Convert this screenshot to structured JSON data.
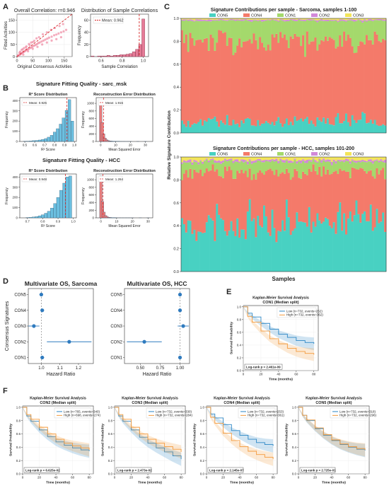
{
  "panels": {
    "A": {
      "letter": "A",
      "scatter": {
        "title": "Overall Correlation: r=0.946",
        "xlabel": "Original Consensus Activities",
        "ylabel": "Fitted Activities",
        "xticks": [
          "0",
          "50",
          "100",
          "150"
        ],
        "yticks": [
          "0",
          "50",
          "100",
          "150"
        ],
        "xlim": [
          0,
          175
        ],
        "ylim": [
          0,
          175
        ],
        "color": "#f08aa2"
      },
      "hist": {
        "title": "Distribution of Sample Correlations",
        "xlabel": "Sample Correlation",
        "ylabel": "Frequency",
        "legend": "Mean: 0.962",
        "xticks": [
          "0.6",
          "0.8",
          "1.0"
        ],
        "yticks": [
          "0",
          "20",
          "40",
          "60"
        ],
        "xlim": [
          0.5,
          1.05
        ],
        "ylim": [
          0,
          70
        ],
        "color": "#e67c98"
      }
    },
    "B": {
      "letter": "B",
      "sarc": {
        "suptitle": "Signature Fitting Quality - sarc_msk",
        "r2": {
          "title": "R² Score Distribution",
          "xlabel": "R² Score",
          "ylabel": "Frequency",
          "legend": "Mean: 0.925",
          "xticks": [
            "0.5",
            "0.6",
            "0.7",
            "0.8",
            "0.9",
            "1.0"
          ],
          "yticks": [
            "0",
            "100",
            "200",
            "300",
            "400"
          ],
          "xlim": [
            0.45,
            1.02
          ],
          "ylim": [
            0,
            430
          ]
        },
        "err": {
          "title": "Reconstruction Error Distribution",
          "xlabel": "Mean Squared Error",
          "ylabel": "Frequency",
          "legend": "Mean: 1.915",
          "xticks": [
            "0",
            "10",
            "20",
            "30"
          ],
          "yticks": [
            "0",
            "200",
            "400",
            "600",
            "800",
            "1000"
          ],
          "xlim": [
            -3,
            35
          ],
          "ylim": [
            0,
            1150
          ]
        }
      },
      "hcc": {
        "suptitle": "Signature Fitting Quality - HCC",
        "r2": {
          "title": "R² Score Distribution",
          "xlabel": "R² Score",
          "ylabel": "Frequency",
          "legend": "Mean: 0.948",
          "xticks": [
            "0.7",
            "0.8",
            "0.9",
            "1.0"
          ],
          "yticks": [
            "0",
            "100",
            "200",
            "300",
            "400"
          ],
          "xlim": [
            0.65,
            1.02
          ],
          "ylim": [
            0,
            430
          ]
        },
        "err": {
          "title": "Reconstruction Error Distribution",
          "xlabel": "Mean Squared Error",
          "ylabel": "Frequency",
          "legend": "Mean: 1.264",
          "xticks": [
            "0",
            "10",
            "20",
            "30"
          ],
          "yticks": [
            "0",
            "200",
            "400",
            "600",
            "800",
            "1000"
          ],
          "xlim": [
            -3,
            33
          ],
          "ylim": [
            0,
            1150
          ]
        }
      },
      "r2color": "#6bbfe0",
      "errcolor": "#e87c7c"
    },
    "C": {
      "letter": "C",
      "ylabel": "Relative Signature Contribution",
      "xlabel": "Samples",
      "yticks": [
        "0.0",
        "0.2",
        "0.4",
        "0.6",
        "0.8",
        "1.0"
      ],
      "legend": [
        "CON5",
        "CON4",
        "CON1",
        "CON2",
        "CON3"
      ],
      "colors": {
        "CON5": "#48d1c2",
        "CON4": "#f47a6a",
        "CON1": "#a4d96c",
        "CON2": "#d289d9",
        "CON3": "#f3e55a"
      },
      "top_title": "Signature Contributions per sample - Sarcoma, samples 1-100",
      "bottom_title": "Signature Contributions per sample - HCC, samples 101-200"
    },
    "D": {
      "letter": "D",
      "ylabel": "Consensus Signatures",
      "xlabel": "Hazard Ratio",
      "signatures": [
        "CON5",
        "CON4",
        "CON3",
        "CON2",
        "CON1"
      ],
      "color": "#2f7bbf",
      "sarcoma": {
        "title": "Multivariate OS, Sarcoma",
        "xticks": [
          "1.0",
          "1.1",
          "1.2"
        ],
        "xlim": [
          0.93,
          1.28
        ]
      },
      "hcc": {
        "title": "Multivariate OS, HCC",
        "xticks": [
          "0.50",
          "0.75",
          "1.00"
        ],
        "xlim": [
          0.3,
          1.12
        ]
      }
    },
    "E": {
      "letter": "E",
      "title": "Kaplan-Meier Survival Analysis",
      "subtitle": "CON1 (Median split)",
      "legend_low": "Low (n=732, events=252)",
      "legend_high": "High (n=732, events=362)",
      "pval": "Log-rank p = 2.461e-09",
      "xlabel": "Time (months)",
      "ylabel": "Survival Probability"
    },
    "F": {
      "letter": "F",
      "xlabel": "Time (months)",
      "ylabel": "Survival Probability",
      "plots": [
        {
          "title": "Kaplan-Meier Survival Analysis",
          "subtitle": "CON2 (Median split)",
          "legend_low": "Low (n=765, events=340)",
          "legend_high": "High (n=698, events=274)",
          "pval": "Log-rank p = 6.625e-02"
        },
        {
          "title": "Kaplan-Meier Survival Analysis",
          "subtitle": "CON3 (Median split)",
          "legend_low": "Low (n=732, events=330)",
          "legend_high": "High (n=732, events=284)",
          "pval": "Log-rank p = 2.473e-02"
        },
        {
          "title": "Kaplan-Meier Survival Analysis",
          "subtitle": "CON4 (Median split)",
          "legend_low": "Low (n=732, events=253)",
          "legend_high": "High (n=732, events=361)",
          "pval": "Log-rank p = 2.145e-07"
        },
        {
          "title": "Kaplan-Meier Survival Analysis",
          "subtitle": "CON5 (Median split)",
          "legend_low": "Low (n=732, events=318)",
          "legend_high": "High (n=732, events=296)",
          "pval": "Log-rank p = 2.725e-01"
        }
      ]
    },
    "km": {
      "xticks": [
        "0",
        "20",
        "40",
        "60",
        "80"
      ],
      "yticks": [
        "0.0",
        "0.2",
        "0.4",
        "0.6",
        "0.8",
        "1.0"
      ],
      "low_color": "#2b86c5",
      "high_color": "#f39a3c"
    }
  },
  "chart_data": [
    {
      "type": "scatter",
      "title": "Overall Correlation: r=0.946",
      "xlabel": "Original Consensus Activities",
      "ylabel": "Fitted Activities",
      "xlim": [
        0,
        175
      ],
      "ylim": [
        0,
        175
      ],
      "points": [
        [
          2,
          2
        ],
        [
          4,
          5
        ],
        [
          6,
          6
        ],
        [
          8,
          7
        ],
        [
          10,
          9
        ],
        [
          12,
          11
        ],
        [
          14,
          13
        ],
        [
          15,
          15
        ],
        [
          18,
          16
        ],
        [
          20,
          19
        ],
        [
          22,
          20
        ],
        [
          25,
          22
        ],
        [
          27,
          25
        ],
        [
          30,
          27
        ],
        [
          33,
          29
        ],
        [
          36,
          31
        ],
        [
          40,
          34
        ],
        [
          44,
          37
        ],
        [
          48,
          40
        ],
        [
          52,
          44
        ],
        [
          56,
          46
        ],
        [
          60,
          49
        ],
        [
          64,
          52
        ],
        [
          68,
          56
        ],
        [
          72,
          58
        ],
        [
          78,
          62
        ],
        [
          84,
          66
        ],
        [
          90,
          70
        ],
        [
          96,
          74
        ],
        [
          102,
          78
        ],
        [
          110,
          82
        ],
        [
          118,
          88
        ],
        [
          125,
          91
        ],
        [
          132,
          95
        ],
        [
          140,
          100
        ],
        [
          148,
          104
        ],
        [
          156,
          110
        ],
        [
          10,
          20
        ],
        [
          15,
          28
        ],
        [
          22,
          35
        ],
        [
          30,
          42
        ],
        [
          38,
          52
        ],
        [
          45,
          58
        ],
        [
          55,
          65
        ],
        [
          62,
          75
        ],
        [
          70,
          80
        ],
        [
          82,
          92
        ],
        [
          95,
          100
        ],
        [
          108,
          110
        ],
        [
          120,
          118
        ],
        [
          135,
          126
        ],
        [
          146,
          134
        ],
        [
          8,
          16
        ],
        [
          18,
          30
        ],
        [
          28,
          38
        ],
        [
          40,
          48
        ],
        [
          50,
          60
        ],
        [
          20,
          8
        ],
        [
          35,
          22
        ],
        [
          50,
          32
        ],
        [
          65,
          40
        ],
        [
          80,
          50
        ],
        [
          95,
          58
        ],
        [
          110,
          66
        ],
        [
          125,
          72
        ],
        [
          140,
          80
        ]
      ]
    },
    {
      "type": "bar",
      "title": "Distribution of Sample Correlations",
      "xlabel": "Sample Correlation",
      "ylabel": "Frequency",
      "x": [
        0.52,
        0.55,
        0.58,
        0.61,
        0.64,
        0.67,
        0.7,
        0.73,
        0.76,
        0.79,
        0.82,
        0.85,
        0.88,
        0.91,
        0.94,
        0.97,
        1.0
      ],
      "values": [
        1,
        0,
        1,
        1,
        1,
        2,
        1,
        2,
        2,
        3,
        3,
        4,
        5,
        8,
        12,
        20,
        62
      ],
      "mean": 0.962
    },
    {
      "type": "bar",
      "title": "R² Score Distribution (sarc_msk)",
      "xlabel": "R² Score",
      "ylabel": "Frequency",
      "x": [
        0.5,
        0.53,
        0.56,
        0.59,
        0.62,
        0.65,
        0.68,
        0.71,
        0.74,
        0.77,
        0.8,
        0.83,
        0.86,
        0.89,
        0.92,
        0.95,
        0.98
      ],
      "values": [
        2,
        3,
        5,
        8,
        10,
        14,
        20,
        28,
        42,
        60,
        92,
        125,
        170,
        230,
        305,
        410,
        200
      ],
      "mean": 0.925
    },
    {
      "type": "bar",
      "title": "Reconstruction Error Distribution (sarc_msk)",
      "xlabel": "Mean Squared Error",
      "ylabel": "Frequency",
      "x": [
        0,
        1,
        2,
        3,
        4,
        5,
        6,
        7,
        8,
        9,
        10,
        12,
        14,
        16,
        18,
        20,
        25,
        30
      ],
      "values": [
        1080,
        500,
        200,
        90,
        45,
        25,
        15,
        10,
        7,
        5,
        4,
        3,
        2,
        2,
        1,
        1,
        1,
        1
      ],
      "mean": 1.915
    },
    {
      "type": "bar",
      "title": "R² Score Distribution (HCC)",
      "xlabel": "R² Score",
      "ylabel": "Frequency",
      "x": [
        0.7,
        0.72,
        0.74,
        0.76,
        0.78,
        0.8,
        0.82,
        0.84,
        0.86,
        0.88,
        0.9,
        0.92,
        0.94,
        0.96,
        0.98
      ],
      "values": [
        3,
        5,
        8,
        12,
        20,
        30,
        45,
        65,
        95,
        140,
        200,
        270,
        340,
        400,
        410
      ],
      "mean": 0.948
    },
    {
      "type": "bar",
      "title": "Reconstruction Error Distribution (HCC)",
      "xlabel": "Mean Squared Error",
      "ylabel": "Frequency",
      "x": [
        0,
        1,
        2,
        3,
        4,
        5,
        6,
        7,
        8,
        9,
        10,
        12,
        14,
        16,
        18,
        20,
        25,
        30
      ],
      "values": [
        1100,
        430,
        150,
        60,
        30,
        15,
        10,
        6,
        4,
        3,
        2,
        2,
        1,
        1,
        1,
        1,
        1,
        1
      ],
      "mean": 1.264
    },
    {
      "type": "bar",
      "stacked": true,
      "title": "Signature Contributions per sample - Sarcoma, samples 1-100",
      "ylabel": "Relative Signature Contribution",
      "n_samples": 100,
      "series_order": [
        "CON5",
        "CON4",
        "CON1",
        "CON2",
        "CON3"
      ],
      "mean_fractions": {
        "CON5": 0.1,
        "CON4": 0.71,
        "CON1": 0.17,
        "CON2": 0.01,
        "CON3": 0.01
      }
    },
    {
      "type": "bar",
      "stacked": true,
      "title": "Signature Contributions per sample - HCC, samples 101-200",
      "ylabel": "Relative Signature Contribution",
      "xlabel": "Samples",
      "n_samples": 100,
      "series_order": [
        "CON5",
        "CON4",
        "CON1",
        "CON2",
        "CON3"
      ],
      "mean_fractions": {
        "CON5": 0.42,
        "CON4": 0.45,
        "CON1": 0.09,
        "CON2": 0.015,
        "CON3": 0.025
      }
    },
    {
      "type": "scatter",
      "title": "Multivariate OS, Sarcoma",
      "xlabel": "Hazard Ratio",
      "ylabel": "Consensus Signatures",
      "categories": [
        "CON5",
        "CON4",
        "CON3",
        "CON2",
        "CON1"
      ],
      "hr": [
        1.0,
        1.005,
        0.96,
        1.15,
        1.005
      ],
      "ci_low": [
        0.99,
        0.995,
        0.93,
        1.03,
        0.995
      ],
      "ci_high": [
        1.01,
        1.015,
        0.99,
        1.27,
        1.015
      ],
      "reference": 1.0
    },
    {
      "type": "scatter",
      "title": "Multivariate OS, HCC",
      "xlabel": "Hazard Ratio",
      "ylabel": "Consensus Signatures",
      "categories": [
        "CON5",
        "CON4",
        "CON3",
        "CON2",
        "CON1"
      ],
      "hr": [
        1.0,
        1.0,
        1.04,
        0.55,
        1.0
      ],
      "ci_low": [
        0.98,
        0.98,
        0.97,
        0.33,
        0.98
      ],
      "ci_high": [
        1.02,
        1.02,
        1.11,
        0.77,
        1.02
      ],
      "reference": 1.0
    },
    {
      "type": "line",
      "title": "Kaplan-Meier Survival Analysis CON1 (Median split)",
      "xlabel": "Time (months)",
      "ylabel": "Survival Probability",
      "x": [
        0,
        5,
        10,
        20,
        30,
        40,
        50,
        60,
        70,
        80
      ],
      "series": [
        {
          "name": "Low (n=732, events=252)",
          "values": [
            1.0,
            0.9,
            0.84,
            0.74,
            0.65,
            0.57,
            0.52,
            0.47,
            0.44,
            0.42
          ]
        },
        {
          "name": "High (n=732, events=362)",
          "values": [
            1.0,
            0.85,
            0.76,
            0.62,
            0.5,
            0.42,
            0.35,
            0.3,
            0.27,
            0.25
          ]
        }
      ]
    },
    {
      "type": "line",
      "title": "Kaplan-Meier Survival Analysis CON2 (Median split)",
      "xlabel": "Time (months)",
      "ylabel": "Survival Probability",
      "x": [
        0,
        5,
        10,
        20,
        30,
        40,
        50,
        60,
        70,
        80
      ],
      "series": [
        {
          "name": "Low (n=765, events=340)",
          "values": [
            1.0,
            0.87,
            0.79,
            0.66,
            0.56,
            0.48,
            0.43,
            0.39,
            0.36,
            0.34
          ]
        },
        {
          "name": "High (n=698, events=274)",
          "values": [
            1.0,
            0.89,
            0.82,
            0.7,
            0.6,
            0.52,
            0.46,
            0.42,
            0.39,
            0.36
          ]
        }
      ]
    },
    {
      "type": "line",
      "title": "Kaplan-Meier Survival Analysis CON3 (Median split)",
      "xlabel": "Time (months)",
      "ylabel": "Survival Probability",
      "x": [
        0,
        5,
        10,
        20,
        30,
        40,
        50,
        60,
        70,
        80
      ],
      "series": [
        {
          "name": "Low (n=732, events=330)",
          "values": [
            1.0,
            0.87,
            0.79,
            0.66,
            0.55,
            0.46,
            0.39,
            0.33,
            0.27,
            0.22
          ]
        },
        {
          "name": "High (n=732, events=284)",
          "values": [
            1.0,
            0.89,
            0.82,
            0.7,
            0.6,
            0.52,
            0.46,
            0.41,
            0.37,
            0.33
          ]
        }
      ]
    },
    {
      "type": "line",
      "title": "Kaplan-Meier Survival Analysis CON4 (Median split)",
      "xlabel": "Time (months)",
      "ylabel": "Survival Probability",
      "x": [
        0,
        5,
        10,
        20,
        30,
        40,
        50,
        60,
        70,
        80
      ],
      "series": [
        {
          "name": "Low (n=732, events=253)",
          "values": [
            1.0,
            0.9,
            0.84,
            0.74,
            0.65,
            0.58,
            0.52,
            0.47,
            0.44,
            0.42
          ]
        },
        {
          "name": "High (n=732, events=361)",
          "values": [
            1.0,
            0.85,
            0.76,
            0.61,
            0.5,
            0.41,
            0.34,
            0.29,
            0.25,
            0.22
          ]
        }
      ]
    },
    {
      "type": "line",
      "title": "Kaplan-Meier Survival Analysis CON5 (Median split)",
      "xlabel": "Time (months)",
      "ylabel": "Survival Probability",
      "x": [
        0,
        5,
        10,
        20,
        30,
        40,
        50,
        60,
        70,
        80
      ],
      "series": [
        {
          "name": "Low (n=732, events=318)",
          "values": [
            1.0,
            0.88,
            0.8,
            0.68,
            0.58,
            0.5,
            0.44,
            0.4,
            0.37,
            0.35
          ]
        },
        {
          "name": "High (n=732, events=296)",
          "values": [
            1.0,
            0.88,
            0.81,
            0.69,
            0.59,
            0.51,
            0.45,
            0.41,
            0.38,
            0.36
          ]
        }
      ]
    }
  ]
}
